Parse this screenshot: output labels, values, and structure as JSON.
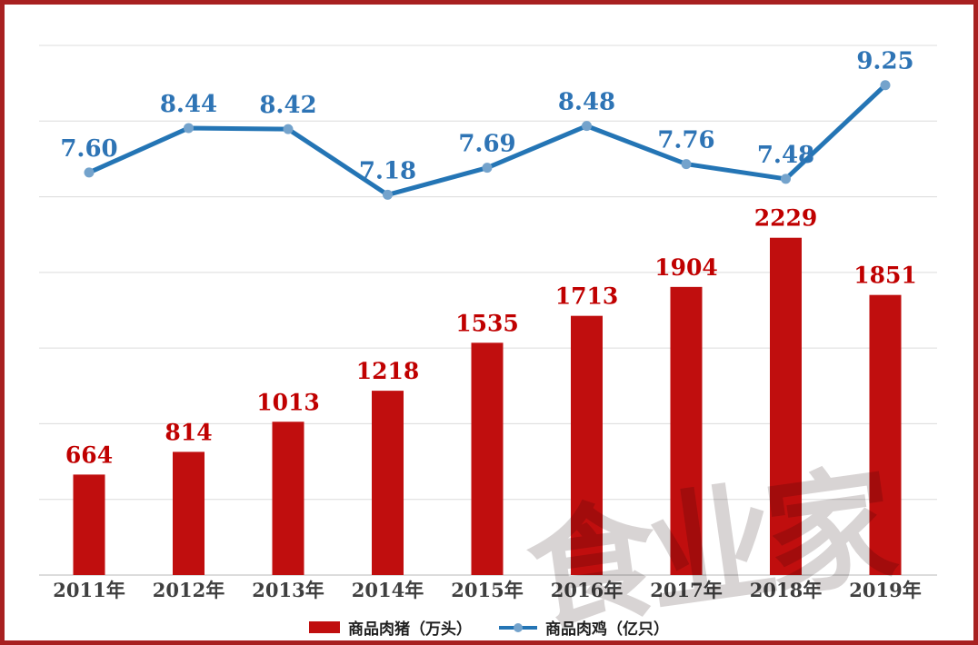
{
  "frame": {
    "border_color": "#A82020",
    "background": "#FFFFFF"
  },
  "watermark": {
    "text": "食业家",
    "color": "rgba(92,74,74,0.24)"
  },
  "legend": {
    "items": [
      {
        "label": "商品肉猪（万头）",
        "swatch": "bar",
        "color": "#C00E0E"
      },
      {
        "label": "商品肉鸡（亿只）",
        "swatch": "line",
        "color": "#2475B5",
        "marker_color": "#74A3CC"
      }
    ]
  },
  "chart_data": {
    "type": "bar+line dual-axis",
    "title": "",
    "xlabel": "",
    "ylabel": "",
    "categories": [
      "2011年",
      "2012年",
      "2013年",
      "2014年",
      "2015年",
      "2016年",
      "2017年",
      "2018年",
      "2019年"
    ],
    "series": [
      {
        "name": "商品肉猪（万头）",
        "type": "bar",
        "axis": "primary",
        "color": "#C00E0E",
        "label_color": "#C00000",
        "values": [
          664,
          814,
          1013,
          1218,
          1535,
          1713,
          1904,
          2229,
          1851
        ],
        "value_labels": [
          "664",
          "814",
          "1013",
          "1218",
          "1535",
          "1713",
          "1904",
          "2229",
          "1851"
        ]
      },
      {
        "name": "商品肉鸡（亿只）",
        "type": "line",
        "axis": "secondary",
        "color": "#2475B5",
        "marker_color": "#74A3CC",
        "label_color": "#2E74B5",
        "values": [
          7.6,
          8.44,
          8.42,
          7.18,
          7.69,
          8.48,
          7.76,
          7.48,
          9.25
        ],
        "value_labels": [
          "7.60",
          "8.44",
          "8.42",
          "7.18",
          "7.69",
          "8.48",
          "7.76",
          "7.48",
          "9.25"
        ]
      }
    ],
    "primary_ylim": [
      0,
      3500
    ],
    "primary_grid_step": 500,
    "secondary_ylim": [
      0,
      10
    ],
    "grid": true,
    "grid_color": "#DCDCDC",
    "axis_line_color": "#C8C8C8",
    "tick_label_color": "#3F3F3F",
    "legend_position": "bottom",
    "y_axis_tick_labels_visible": false
  }
}
